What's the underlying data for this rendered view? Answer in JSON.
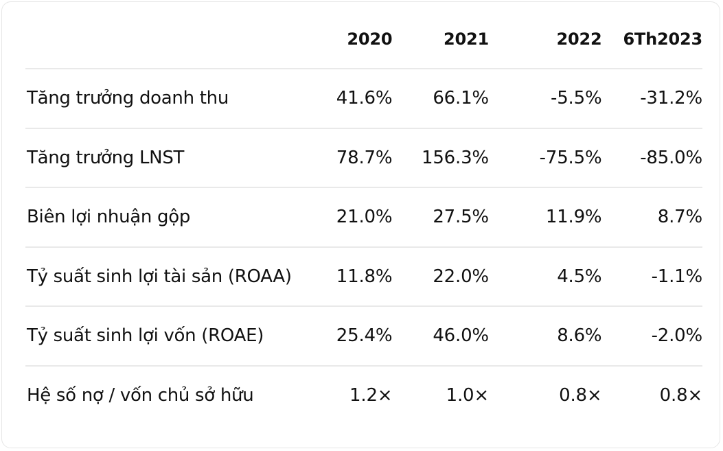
{
  "table": {
    "headers": [
      "",
      "2020",
      "2021",
      "2022",
      "6Th2023"
    ],
    "rows": [
      {
        "label": "Tăng trưởng doanh thu",
        "values": [
          "41.6%",
          "66.1%",
          "-5.5%",
          "-31.2%"
        ]
      },
      {
        "label": "Tăng trưởng LNST",
        "values": [
          "78.7%",
          "156.3%",
          "-75.5%",
          "-85.0%"
        ]
      },
      {
        "label": "Biên lợi nhuận gộp",
        "values": [
          "21.0%",
          "27.5%",
          "11.9%",
          "8.7%"
        ]
      },
      {
        "label": "Tỷ suất sinh lợi tài sản (ROAA)",
        "values": [
          "11.8%",
          "22.0%",
          "4.5%",
          "-1.1%"
        ]
      },
      {
        "label": "Tỷ suất sinh lợi vốn (ROAE)",
        "values": [
          "25.4%",
          "46.0%",
          "8.6%",
          "-2.0%"
        ]
      },
      {
        "label": "Hệ số nợ / vốn chủ sở hữu",
        "values": [
          "1.2×",
          "1.0×",
          "0.8×",
          "0.8×"
        ]
      }
    ]
  }
}
